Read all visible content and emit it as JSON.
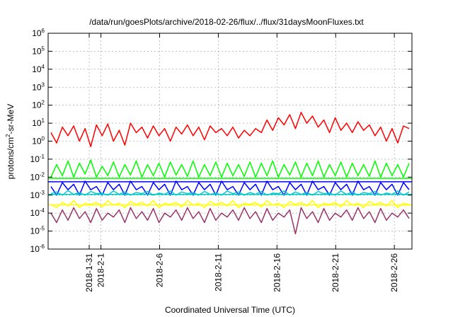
{
  "chart_data": {
    "type": "line",
    "title": "/data/run/goesPlots/archive/2018-02-26/flux/../flux/31daysMoonFluxes.txt",
    "xlabel": "Coordinated Universal Time (UTC)",
    "ylabel_parts": {
      "base": "protons/cm",
      "exp": "2",
      "rest": "-sr-MeV"
    },
    "yscale": "log",
    "ylim": [
      1e-06,
      1000000.0
    ],
    "y_ticks": [
      {
        "value": 1e-06,
        "base": "10",
        "exp": "-6"
      },
      {
        "value": 1e-05,
        "base": "10",
        "exp": "-5"
      },
      {
        "value": 0.0001,
        "base": "10",
        "exp": "-4"
      },
      {
        "value": 0.001,
        "base": "10",
        "exp": "-3"
      },
      {
        "value": 0.01,
        "base": "10",
        "exp": "-2"
      },
      {
        "value": 0.1,
        "base": "10",
        "exp": "-1"
      },
      {
        "value": 1,
        "base": "10",
        "exp": "0"
      },
      {
        "value": 10,
        "base": "10",
        "exp": "1"
      },
      {
        "value": 100,
        "base": "10",
        "exp": "2"
      },
      {
        "value": 1000,
        "base": "10",
        "exp": "3"
      },
      {
        "value": 10000,
        "base": "10",
        "exp": "4"
      },
      {
        "value": 100000,
        "base": "10",
        "exp": "5"
      },
      {
        "value": 1000000,
        "base": "10",
        "exp": "6"
      }
    ],
    "x_range_days": [
      "2018-01-27T12:00",
      "2018-02-27T12:00"
    ],
    "x_ticks": [
      {
        "date": "2018-01-31T00:00",
        "label": "2018-1-31"
      },
      {
        "date": "2018-02-01T00:00",
        "label": "2018-2-1"
      },
      {
        "date": "2018-02-06T00:00",
        "label": "2018-2-6"
      },
      {
        "date": "2018-02-11T00:00",
        "label": "2018-2-11"
      },
      {
        "date": "2018-02-16T00:00",
        "label": "2018-2-16"
      },
      {
        "date": "2018-02-21T00:00",
        "label": "2018-2-21"
      },
      {
        "date": "2018-02-26T00:00",
        "label": "2018-2-26"
      }
    ],
    "grid": true,
    "series": [
      {
        "color": "#ff0000",
        "values": [
          3,
          0.8,
          6,
          2,
          7,
          1,
          5,
          0.5,
          8,
          2,
          9,
          1,
          4,
          0.6,
          10,
          3,
          6,
          1.5,
          7,
          2,
          5,
          1,
          6,
          2.5,
          8,
          2,
          6,
          1.2,
          7,
          3,
          5,
          2,
          6,
          1.5,
          4,
          2,
          5,
          3,
          15,
          4,
          20,
          8,
          30,
          5,
          40,
          10,
          25,
          6,
          15,
          3,
          20,
          4,
          10,
          3,
          12,
          4,
          8,
          2,
          6,
          1,
          5,
          0.8,
          7,
          5
        ]
      },
      {
        "color": "#00ff00",
        "values": [
          0.01,
          0.05,
          0.012,
          0.08,
          0.01,
          0.06,
          0.015,
          0.09,
          0.01,
          0.04,
          0.012,
          0.07,
          0.01,
          0.05,
          0.013,
          0.08,
          0.01,
          0.05,
          0.012,
          0.06,
          0.01,
          0.07,
          0.013,
          0.05,
          0.011,
          0.08,
          0.01,
          0.05,
          0.012,
          0.07,
          0.01,
          0.06,
          0.012,
          0.05,
          0.011,
          0.07,
          0.01,
          0.06,
          0.012,
          0.08,
          0.01,
          0.05,
          0.013,
          0.07,
          0.01,
          0.06,
          0.012,
          0.08,
          0.01,
          0.05,
          0.012,
          0.07,
          0.01,
          0.06,
          0.012,
          0.05,
          0.011,
          0.08,
          0.01,
          0.06,
          0.012,
          0.05,
          0.01,
          0.06
        ]
      },
      {
        "color": "#0000ff",
        "values": [
          0.003,
          0.001,
          0.005,
          0.002,
          0.004,
          0.001,
          0.006,
          0.002,
          0.003,
          0.001,
          0.005,
          0.002,
          0.004,
          0.001,
          0.006,
          0.002,
          0.003,
          0.001,
          0.005,
          0.002,
          0.004,
          0.001,
          0.006,
          0.002,
          0.003,
          0.001,
          0.005,
          0.002,
          0.004,
          0.001,
          0.006,
          0.002,
          0.003,
          0.001,
          0.005,
          0.002,
          0.004,
          0.001,
          0.006,
          0.002,
          0.003,
          0.001,
          0.005,
          0.002,
          0.004,
          0.001,
          0.006,
          0.002,
          0.003,
          0.001,
          0.005,
          0.002,
          0.004,
          0.001,
          0.006,
          0.002,
          0.003,
          0.001,
          0.005,
          0.002,
          0.004,
          0.001,
          0.005,
          0.002
        ]
      },
      {
        "color": "#00cccc",
        "values": [
          0.0012,
          0.0015,
          0.001,
          0.0018,
          0.0011,
          0.0014,
          0.001,
          0.0016,
          0.0012,
          0.0013,
          0.001,
          0.0017,
          0.0011,
          0.0015,
          0.001,
          0.0014,
          0.0012,
          0.0016,
          0.001,
          0.0013,
          0.0011,
          0.0017,
          0.001,
          0.0015,
          0.0012,
          0.0014,
          0.001,
          0.0016,
          0.0011,
          0.0013,
          0.001,
          0.0017,
          0.0012,
          0.0015,
          0.001,
          0.0014,
          0.0011,
          0.0016,
          0.001,
          0.0013,
          0.0012,
          0.0017,
          0.001,
          0.0015,
          0.0011,
          0.0014,
          0.001,
          0.0016,
          0.0012,
          0.0013,
          0.001,
          0.0017,
          0.0011,
          0.0015,
          0.001,
          0.0014,
          0.0012,
          0.0016,
          0.001,
          0.0013,
          0.0011,
          0.0017,
          0.001,
          0.0015
        ]
      },
      {
        "color": "#ffff00",
        "values": [
          0.0003,
          0.0002,
          0.0004,
          0.00025,
          0.0005,
          0.0002,
          0.00035,
          0.0003,
          0.0004,
          0.00022,
          0.0005,
          0.00028,
          0.00035,
          0.0002,
          0.00045,
          0.0003,
          0.0004,
          0.00025,
          0.0005,
          0.0002,
          0.00035,
          0.0003,
          0.0004,
          0.00022,
          0.0005,
          0.00028,
          0.00035,
          0.0002,
          0.00045,
          0.0003,
          0.0004,
          0.00025,
          0.0005,
          0.0002,
          0.00035,
          0.0003,
          0.0004,
          0.00022,
          0.0005,
          0.00028,
          0.00035,
          0.0002,
          0.00045,
          0.0003,
          0.0004,
          0.00025,
          0.0005,
          0.0002,
          0.00035,
          0.0003,
          0.0004,
          0.00022,
          0.0005,
          0.00028,
          0.00035,
          0.0002,
          0.00045,
          0.0003,
          0.0004,
          0.00025,
          0.0005,
          0.0002,
          0.00035,
          0.0003
        ]
      },
      {
        "color": "#993366",
        "values": [
          0.0001,
          3e-05,
          0.00015,
          4e-05,
          0.0002,
          5e-05,
          0.00012,
          3e-05,
          0.00018,
          4e-05,
          0.0001,
          6e-05,
          0.00015,
          3e-05,
          0.0002,
          5e-05,
          0.00012,
          4e-05,
          0.00018,
          3e-05,
          0.0001,
          6e-05,
          0.00015,
          4e-05,
          0.0002,
          5e-05,
          0.00012,
          3e-05,
          0.00018,
          4e-05,
          0.0001,
          6e-05,
          0.00015,
          4e-05,
          0.0002,
          5e-05,
          0.00012,
          3e-05,
          0.00018,
          4e-05,
          0.0001,
          6e-05,
          0.00015,
          7e-06,
          0.0002,
          5e-05,
          0.00012,
          3e-05,
          0.00018,
          4e-05,
          0.0001,
          6e-05,
          0.00015,
          4e-05,
          0.0002,
          5e-05,
          0.00012,
          3e-05,
          0.00018,
          4e-05,
          0.0001,
          6e-05,
          0.00015,
          5e-05
        ]
      }
    ],
    "reference_lines": [
      {
        "color": "#00ff00",
        "value": 0.0085
      },
      {
        "color": "#0000ff",
        "value": 0.0055
      },
      {
        "color": "#00cccc",
        "value": 0.0011
      },
      {
        "color": "#ffff00",
        "value": 0.00028
      }
    ]
  }
}
